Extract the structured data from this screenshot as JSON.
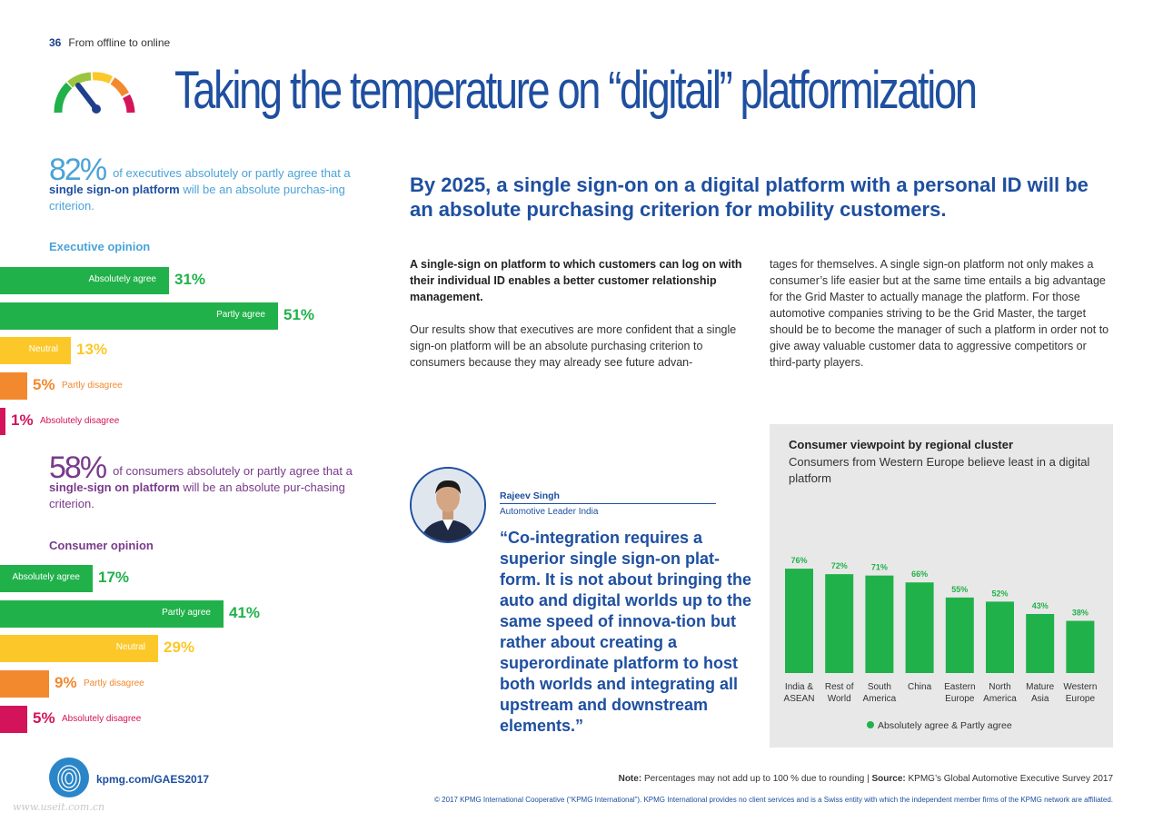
{
  "page": {
    "number": "36",
    "section": "From offline to online",
    "title": "Taking the temperature on “digitail” platformization"
  },
  "executive": {
    "big": "82%",
    "text_a": "of executives absolutely or partly agree that a",
    "bold": "single sign-on platform",
    "text_b": "will be an absolute purchas-ing criterion.",
    "heading": "Executive opinion",
    "bars": [
      {
        "label": "Absolutely agree",
        "value": 31,
        "pct": "31%",
        "color": "#21b14a",
        "pct_color": "#21b14a",
        "label_inside": true
      },
      {
        "label": "Partly agree",
        "value": 51,
        "pct": "51%",
        "color": "#21b14a",
        "pct_color": "#21b14a",
        "label_inside": true
      },
      {
        "label": "Neutral",
        "value": 13,
        "pct": "13%",
        "color": "#fcc829",
        "pct_color": "#fcc829",
        "label_inside": true
      },
      {
        "label": "Partly disagree",
        "value": 5,
        "pct": "5%",
        "color": "#f3892e",
        "pct_color": "#f3892e",
        "label_inside": false
      },
      {
        "label": "Absolutely disagree",
        "value": 1,
        "pct": "1%",
        "color": "#d4145a",
        "pct_color": "#d4145a",
        "label_inside": false
      }
    ]
  },
  "consumer": {
    "big": "58%",
    "text_a": "of consumers absolutely or partly agree that a",
    "bold": "single-sign on platform",
    "text_b": "will be an absolute pur-chasing criterion.",
    "heading": "Consumer opinion",
    "bars": [
      {
        "label": "Absolutely agree",
        "value": 17,
        "pct": "17%",
        "color": "#21b14a",
        "pct_color": "#21b14a",
        "label_inside": true
      },
      {
        "label": "Partly agree",
        "value": 41,
        "pct": "41%",
        "color": "#21b14a",
        "pct_color": "#21b14a",
        "label_inside": true
      },
      {
        "label": "Neutral",
        "value": 29,
        "pct": "29%",
        "color": "#fcc829",
        "pct_color": "#fcc829",
        "label_inside": true
      },
      {
        "label": "Partly disagree",
        "value": 9,
        "pct": "9%",
        "color": "#f3892e",
        "pct_color": "#f3892e",
        "label_inside": false
      },
      {
        "label": "Absolutely disagree",
        "value": 5,
        "pct": "5%",
        "color": "#d4145a",
        "pct_color": "#d4145a",
        "label_inside": false
      }
    ]
  },
  "article": {
    "headline": "By 2025, a single sign-on on a digital platform with a personal ID will be an absolute purchasing criterion for mobility customers.",
    "lead": "A single-sign on platform to which customers can log on with their individual ID enables a better customer relationship management.",
    "body1": "Our results show that executives are more confident that a single sign-on platform will be an absolute purchasing criterion to consumers because they may already see future advan-",
    "body2": "tages for themselves. A single sign-on platform not only makes a consumer’s life easier but at the same time entails a big advantage for the Grid Master to actually manage the platform. For those automotive companies striving to be the Grid Master, the target should be to become the manager of such a platform in order not to give away valuable customer data to aggressive competitors or third-party players."
  },
  "quote": {
    "name": "Rajeev Singh",
    "role": "Automotive Leader India",
    "text": "“Co-integration requires a superior single sign-on plat-form. It is not about bringing the auto and digital worlds up to the same speed of innova-tion but rather about creating a superordinate platform to host both worlds and integrating all upstream and downstream elements.”"
  },
  "chart_data": {
    "type": "bar",
    "title": "Consumer viewpoint by regional cluster",
    "subtitle": "Consumers from Western Europe believe least in a digital platform",
    "categories": [
      [
        "India &",
        "ASEAN"
      ],
      [
        "Rest of",
        "World"
      ],
      [
        "South",
        "America"
      ],
      [
        "China"
      ],
      [
        "Eastern",
        "Europe"
      ],
      [
        "North",
        "America"
      ],
      [
        "Mature",
        "Asia"
      ],
      [
        "Western",
        "Europe"
      ]
    ],
    "series": [
      {
        "name": "Absolutely agree & Partly agree",
        "values": [
          76,
          72,
          71,
          66,
          55,
          52,
          43,
          38
        ]
      }
    ],
    "value_labels": [
      "76%",
      "72%",
      "71%",
      "66%",
      "55%",
      "52%",
      "43%",
      "38%"
    ],
    "color": "#21b14a",
    "ylim": [
      0,
      100
    ],
    "grid": false,
    "legend": "bottom"
  },
  "footer": {
    "url": "kpmg.com/GAES2017",
    "note_label": "Note:",
    "note": "Percentages may not add up to 100 % due to rounding |",
    "source_label": "Source:",
    "source": "KPMG’s Global Automotive Executive Survey 2017",
    "copyright": "© 2017 KPMG International Cooperative (“KPMG International”). KPMG International provides no client services and is a Swiss entity with which the independent member firms of the KPMG network are affiliated.",
    "watermark": "www.useit.com.cn"
  }
}
